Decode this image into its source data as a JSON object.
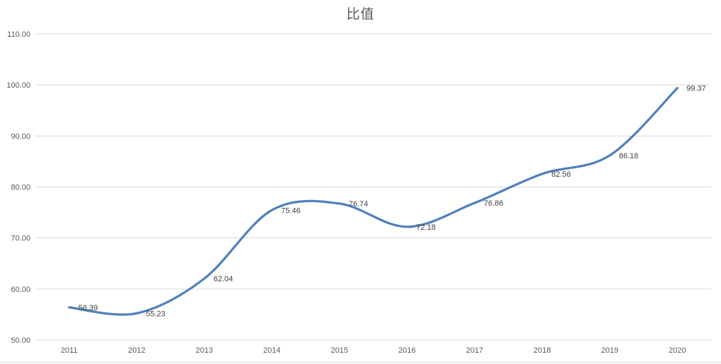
{
  "chart_data": {
    "type": "line",
    "title": "比值",
    "categories": [
      "2011",
      "2012",
      "2013",
      "2014",
      "2015",
      "2016",
      "2017",
      "2018",
      "2019",
      "2020"
    ],
    "series": [
      {
        "name": "比值",
        "values": [
          56.39,
          55.23,
          62.04,
          75.46,
          76.74,
          72.18,
          76.86,
          82.56,
          86.18,
          99.37
        ]
      }
    ],
    "data_labels": [
      "56.39",
      "55.23",
      "62.04",
      "75.46",
      "76.74",
      "72.18",
      "76.86",
      "82.56",
      "86.18",
      "99.37"
    ],
    "xlabel": "",
    "ylabel": "",
    "ylim": [
      50,
      110
    ],
    "ytick_step": 10,
    "ytick_labels": [
      "110.00",
      "100.00",
      "90.00",
      "80.00",
      "70.00",
      "60.00",
      "50.00"
    ],
    "grid": "horizontal",
    "legend": "none",
    "smooth": true,
    "markers": false,
    "colors": {
      "line": "#4F81BD",
      "grid": "#D9D9D9",
      "border": "#D9D9D9",
      "axis_text": "#595959",
      "label_text": "#3F3F3F",
      "title_text": "#595959",
      "background": "#FFFFFF"
    }
  }
}
